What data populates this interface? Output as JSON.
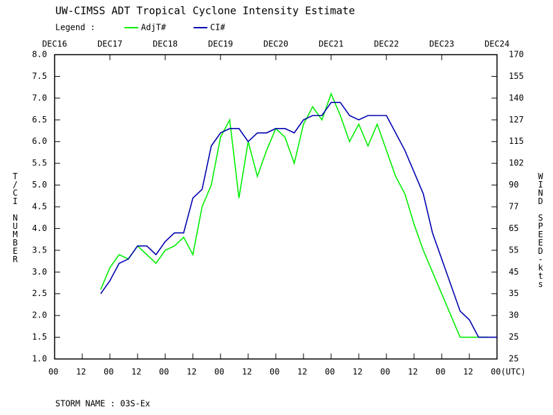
{
  "chart_data": {
    "type": "line",
    "title": "UW-CIMSS ADT Tropical Cyclone Intensity Estimate",
    "legend_label": "Legend :",
    "y_label": "T/CI NUMBER",
    "y2_label": "WIND SPEED-kts",
    "footer": "STORM NAME : 03S-Ex",
    "x": [
      20,
      24,
      28,
      32,
      36,
      40,
      44,
      48,
      52,
      56,
      60,
      64,
      68,
      72,
      76,
      80,
      84,
      88,
      92,
      96,
      100,
      104,
      108,
      112,
      116,
      120,
      124,
      128,
      132,
      136,
      140,
      144,
      148,
      152,
      156,
      160,
      164,
      168,
      172,
      176,
      180,
      184,
      188,
      192
    ],
    "xlim": [
      0,
      192
    ],
    "xticks": [
      {
        "value": 0,
        "label": "00"
      },
      {
        "value": 12,
        "label": "12"
      },
      {
        "value": 24,
        "label": "00"
      },
      {
        "value": 36,
        "label": "12"
      },
      {
        "value": 48,
        "label": "00"
      },
      {
        "value": 60,
        "label": "12"
      },
      {
        "value": 72,
        "label": "00"
      },
      {
        "value": 84,
        "label": "12"
      },
      {
        "value": 96,
        "label": "00"
      },
      {
        "value": 108,
        "label": "12"
      },
      {
        "value": 120,
        "label": "00"
      },
      {
        "value": 132,
        "label": "12"
      },
      {
        "value": 144,
        "label": "00"
      },
      {
        "value": 156,
        "label": "12"
      },
      {
        "value": 168,
        "label": "00"
      },
      {
        "value": 180,
        "label": "12"
      },
      {
        "value": 192,
        "label": "00(UTC)"
      }
    ],
    "date_ticks": [
      {
        "value": 0,
        "label": "DEC16"
      },
      {
        "value": 24,
        "label": "DEC17"
      },
      {
        "value": 48,
        "label": "DEC18"
      },
      {
        "value": 72,
        "label": "DEC19"
      },
      {
        "value": 96,
        "label": "DEC20"
      },
      {
        "value": 120,
        "label": "DEC21"
      },
      {
        "value": 144,
        "label": "DEC22"
      },
      {
        "value": 168,
        "label": "DEC23"
      },
      {
        "value": 192,
        "label": "DEC24"
      }
    ],
    "ylim": [
      1,
      8
    ],
    "yticks": [
      {
        "value": 1,
        "label": "1.0"
      },
      1.5,
      {
        "value": 2,
        "label": "2.0"
      },
      2.5,
      {
        "value": 3,
        "label": "3.0"
      },
      3.5,
      {
        "value": 4,
        "label": "4.0"
      },
      4.5,
      {
        "value": 5,
        "label": "5.0"
      },
      5.5,
      {
        "value": 6,
        "label": "6.0"
      },
      6.5,
      {
        "value": 7,
        "label": "7.0"
      },
      7.5,
      {
        "value": 8,
        "label": "8.0"
      }
    ],
    "wind_speed_ticks": [
      {
        "t_number": 1,
        "kts": 25
      },
      {
        "t_number": 1.5,
        "kts": 25
      },
      {
        "t_number": 2,
        "kts": 30
      },
      {
        "t_number": 2.5,
        "kts": 35
      },
      {
        "t_number": 3,
        "kts": 45
      },
      {
        "t_number": 3.5,
        "kts": 55
      },
      {
        "t_number": 4,
        "kts": 65
      },
      {
        "t_number": 4.5,
        "kts": 77
      },
      {
        "t_number": 5,
        "kts": 90
      },
      {
        "t_number": 5.5,
        "kts": 102
      },
      {
        "t_number": 6,
        "kts": 115
      },
      {
        "t_number": 6.5,
        "kts": 127
      },
      {
        "t_number": 7,
        "kts": 140
      },
      {
        "t_number": 7.5,
        "kts": 155
      },
      {
        "t_number": 8,
        "kts": 170
      }
    ],
    "series": [
      {
        "name": "AdjT#",
        "color": "#00ee00",
        "values": [
          2.6,
          3.1,
          3.4,
          3.3,
          3.6,
          3.4,
          3.2,
          3.5,
          3.6,
          3.8,
          3.4,
          4.5,
          5.0,
          6.1,
          6.5,
          4.7,
          6.0,
          5.2,
          5.8,
          6.3,
          6.1,
          5.5,
          6.4,
          6.8,
          6.5,
          7.1,
          6.6,
          6.0,
          6.4,
          5.9,
          6.4,
          5.8,
          5.2,
          4.8,
          4.1,
          3.5,
          3.0,
          2.5,
          2.0,
          1.5,
          1.5,
          1.5,
          1.5,
          null
        ]
      },
      {
        "name": "CI#",
        "color": "#0000b0",
        "values": [
          2.5,
          2.8,
          3.2,
          3.3,
          3.6,
          3.6,
          3.4,
          3.7,
          3.9,
          3.9,
          4.7,
          4.9,
          5.9,
          6.2,
          6.3,
          6.3,
          6.0,
          6.2,
          6.2,
          6.3,
          6.3,
          6.2,
          6.5,
          6.6,
          6.6,
          6.9,
          6.9,
          6.6,
          6.5,
          6.6,
          6.6,
          6.6,
          6.2,
          5.8,
          5.3,
          4.8,
          3.9,
          3.3,
          2.7,
          2.1,
          1.9,
          1.5,
          1.5,
          1.5
        ]
      }
    ]
  }
}
